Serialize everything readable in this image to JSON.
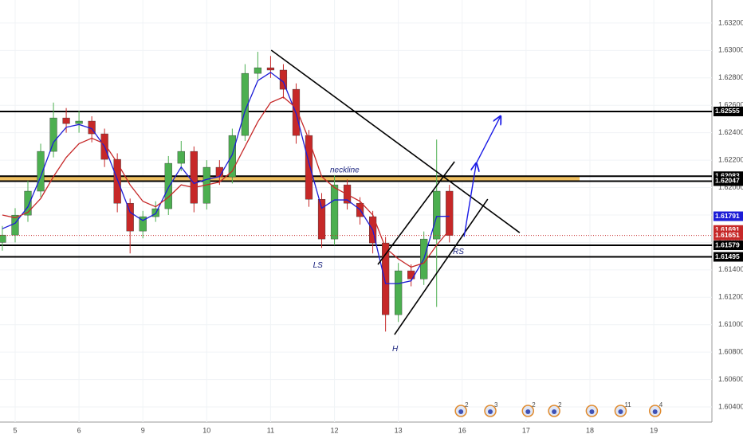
{
  "chart_data": {
    "type": "candlestick",
    "xlim": [
      -0.237,
      10.91
    ],
    "xticks": [
      {
        "value": 0,
        "label": "5"
      },
      {
        "value": 1,
        "label": "6"
      },
      {
        "value": 2,
        "label": "9"
      },
      {
        "value": 3,
        "label": "10"
      },
      {
        "value": 4,
        "label": "11"
      },
      {
        "value": 5,
        "label": "12"
      },
      {
        "value": 6,
        "label": "13"
      },
      {
        "value": 7,
        "label": "16"
      },
      {
        "value": 8,
        "label": "17"
      },
      {
        "value": 9,
        "label": "18"
      },
      {
        "value": 10,
        "label": "19"
      }
    ],
    "ylim": [
      1.6029,
      1.63368
    ],
    "yticks": [
      {
        "value": 1.604,
        "label": "1.60400"
      },
      {
        "value": 1.606,
        "label": "1.60600"
      },
      {
        "value": 1.608,
        "label": "1.60800"
      },
      {
        "value": 1.61,
        "label": "1.61000"
      },
      {
        "value": 1.612,
        "label": "1.61200"
      },
      {
        "value": 1.614,
        "label": "1.61400"
      },
      {
        "value": 1.616,
        "label": "1.61600"
      },
      {
        "value": 1.618,
        "label": "1.61800"
      },
      {
        "value": 1.62,
        "label": "1.62000"
      },
      {
        "value": 1.622,
        "label": "1.62200"
      },
      {
        "value": 1.624,
        "label": "1.62400"
      },
      {
        "value": 1.626,
        "label": "1.62600"
      },
      {
        "value": 1.628,
        "label": "1.62800"
      },
      {
        "value": 1.63,
        "label": "1.63000"
      },
      {
        "value": 1.632,
        "label": "1.63200"
      }
    ],
    "grid": true,
    "up_color": "#4caf50",
    "down_color": "#c62828",
    "x": [
      -0.2,
      0,
      0.2,
      0.4,
      0.6,
      0.8,
      1,
      1.2,
      1.4,
      1.6,
      1.8,
      2,
      2.2,
      2.4,
      2.6,
      2.8,
      3,
      3.2,
      3.4,
      3.6,
      3.8,
      4,
      4.2,
      4.4,
      4.6,
      4.8,
      5,
      5.2,
      5.4,
      5.6,
      5.8,
      6,
      6.2,
      6.4,
      6.6,
      6.8
    ],
    "ohlc": [
      [
        1.616,
        1.6172,
        1.6154,
        1.61654
      ],
      [
        1.61654,
        1.6185,
        1.616,
        1.61799
      ],
      [
        1.61799,
        1.6205,
        1.6175,
        1.61974
      ],
      [
        1.61974,
        1.6232,
        1.6193,
        1.62264
      ],
      [
        1.62264,
        1.6262,
        1.6222,
        1.62508
      ],
      [
        1.62508,
        1.6258,
        1.624,
        1.62467
      ],
      [
        1.62467,
        1.6256,
        1.624,
        1.62485
      ],
      [
        1.62485,
        1.6252,
        1.6233,
        1.62392
      ],
      [
        1.62392,
        1.6243,
        1.6215,
        1.62206
      ],
      [
        1.62206,
        1.6225,
        1.6182,
        1.61886
      ],
      [
        1.61886,
        1.6192,
        1.6152,
        1.61683
      ],
      [
        1.61683,
        1.6183,
        1.6163,
        1.61788
      ],
      [
        1.61788,
        1.619,
        1.6175,
        1.61846
      ],
      [
        1.61846,
        1.6223,
        1.618,
        1.62177
      ],
      [
        1.62177,
        1.6234,
        1.6212,
        1.62264
      ],
      [
        1.62264,
        1.623,
        1.6182,
        1.61886
      ],
      [
        1.61886,
        1.622,
        1.6184,
        1.62148
      ],
      [
        1.62148,
        1.622,
        1.6202,
        1.62078
      ],
      [
        1.62078,
        1.6243,
        1.6203,
        1.6238
      ],
      [
        1.6238,
        1.629,
        1.6234,
        1.62833
      ],
      [
        1.62833,
        1.6299,
        1.6279,
        1.62874
      ],
      [
        1.62874,
        1.6296,
        1.628,
        1.62857
      ],
      [
        1.62857,
        1.629,
        1.6265,
        1.62717
      ],
      [
        1.62717,
        1.6276,
        1.6232,
        1.6238
      ],
      [
        1.6238,
        1.6242,
        1.6186,
        1.61915
      ],
      [
        1.61915,
        1.6196,
        1.6156,
        1.61625
      ],
      [
        1.61625,
        1.6209,
        1.6158,
        1.6202
      ],
      [
        1.6202,
        1.6206,
        1.6184,
        1.61886
      ],
      [
        1.61886,
        1.6193,
        1.6173,
        1.61788
      ],
      [
        1.61788,
        1.6183,
        1.6152,
        1.61596
      ],
      [
        1.61596,
        1.6164,
        1.6095,
        1.61073
      ],
      [
        1.61073,
        1.6145,
        1.6102,
        1.61393
      ],
      [
        1.61393,
        1.6144,
        1.6128,
        1.61334
      ],
      [
        1.61334,
        1.6168,
        1.6129,
        1.61625
      ],
      [
        1.61625,
        1.6235,
        1.6113,
        1.61974
      ],
      [
        1.61974,
        1.6202,
        1.616,
        1.61651
      ]
    ],
    "overlays": [
      {
        "color": "#1c1cd6",
        "values": [
          1.617,
          1.6174,
          1.6186,
          1.6208,
          1.6233,
          1.6244,
          1.6246,
          1.6243,
          1.623,
          1.6206,
          1.6182,
          1.6176,
          1.6181,
          1.62,
          1.6215,
          1.6203,
          1.6206,
          1.6208,
          1.6224,
          1.6256,
          1.6278,
          1.6284,
          1.6277,
          1.6254,
          1.6218,
          1.6185,
          1.6191,
          1.6191,
          1.6184,
          1.6169,
          1.613,
          1.613,
          1.6132,
          1.6148,
          1.6179,
          1.61791
        ]
      },
      {
        "color": "#c62828",
        "values": [
          1.618,
          1.6178,
          1.6182,
          1.6192,
          1.6208,
          1.6222,
          1.6232,
          1.6236,
          1.6232,
          1.6218,
          1.6202,
          1.619,
          1.6186,
          1.6193,
          1.6202,
          1.62,
          1.6202,
          1.6204,
          1.6212,
          1.623,
          1.6248,
          1.6262,
          1.6266,
          1.6258,
          1.6235,
          1.6208,
          1.62,
          1.6195,
          1.619,
          1.618,
          1.6156,
          1.6148,
          1.6142,
          1.6145,
          1.6158,
          1.61691
        ]
      }
    ],
    "levels": [
      1.62555,
      1.62083,
      1.62047,
      1.61579,
      1.61495
    ],
    "zone_color": "#f0c060",
    "trendlines": [
      [
        4.01,
        1.63002,
        7.9,
        1.61671
      ],
      [
        5.68,
        1.61439,
        6.88,
        1.62189
      ],
      [
        5.94,
        1.60928,
        7.4,
        1.61916
      ]
    ],
    "arrow": [
      [
        7.03,
        1.61642
      ],
      [
        7.22,
        1.62177
      ],
      [
        7.6,
        1.6252
      ]
    ],
    "annotations": [
      {
        "text": "neckline",
        "x": 5.16,
        "y": 1.62125
      },
      {
        "text": "LS",
        "x": 4.74,
        "y": 1.61433
      },
      {
        "text": "H",
        "x": 5.95,
        "y": 1.60823
      },
      {
        "text": "RS",
        "x": 6.94,
        "y": 1.61532
      }
    ],
    "events": [
      {
        "x": 6.98,
        "label": "2"
      },
      {
        "x": 7.44,
        "label": "3"
      },
      {
        "x": 8.03,
        "label": "2"
      },
      {
        "x": 8.44,
        "label": "2"
      },
      {
        "x": 9.03
      },
      {
        "x": 9.48,
        "label": "11"
      },
      {
        "x": 10.02,
        "label": "4"
      }
    ]
  }
}
